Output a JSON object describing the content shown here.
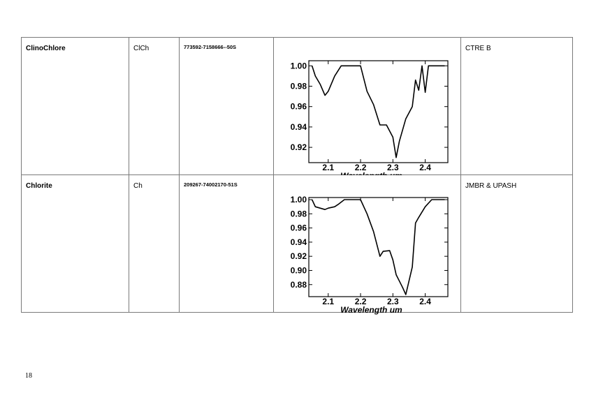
{
  "rows": [
    {
      "name": "ClinoChlore",
      "abbr": "ClCh",
      "code": "773592-7158666--50S",
      "source": "CTRE B"
    },
    {
      "name": "Chlorite",
      "abbr": "Ch",
      "code": "209267-74002170-51S",
      "source": "JMBR & UPASH"
    }
  ],
  "page_number": "18",
  "chart_data": [
    {
      "type": "line",
      "xlabel": "Wavelength um",
      "ylabel": "",
      "xlim": [
        2.04,
        2.47
      ],
      "ylim": [
        0.905,
        1.005
      ],
      "xticks": [
        2.1,
        2.2,
        2.3,
        2.4
      ],
      "xtick_labels": [
        "2.1",
        "2.2",
        "2.3",
        "2.4"
      ],
      "yticks": [
        0.92,
        0.94,
        0.96,
        0.98,
        1.0
      ],
      "ytick_labels": [
        "0.92",
        "0.94",
        "0.96",
        "0.98",
        "1.00"
      ],
      "series": [
        {
          "x": [
            2.05,
            2.06,
            2.075,
            2.09,
            2.1,
            2.12,
            2.14,
            2.16,
            2.18,
            2.2,
            2.22,
            2.24,
            2.26,
            2.28,
            2.3,
            2.31,
            2.32,
            2.34,
            2.36,
            2.37,
            2.38,
            2.39,
            2.4,
            2.41,
            2.42,
            2.44,
            2.46
          ],
          "y": [
            1.0,
            0.99,
            0.982,
            0.971,
            0.975,
            0.99,
            1.0,
            1.0,
            1.0,
            1.0,
            0.975,
            0.962,
            0.942,
            0.942,
            0.93,
            0.91,
            0.926,
            0.948,
            0.96,
            0.986,
            0.976,
            1.0,
            0.974,
            1.0,
            1.0,
            1.0,
            1.0
          ]
        }
      ]
    },
    {
      "type": "line",
      "xlabel": "Wavelength um",
      "ylabel": "",
      "xlim": [
        2.04,
        2.47
      ],
      "ylim": [
        0.863,
        1.003
      ],
      "xticks": [
        2.1,
        2.2,
        2.3,
        2.4
      ],
      "xtick_labels": [
        "2.1",
        "2.2",
        "2.3",
        "2.4"
      ],
      "yticks": [
        0.88,
        0.9,
        0.92,
        0.94,
        0.96,
        0.98,
        1.0
      ],
      "ytick_labels": [
        "0.88",
        "0.90",
        "0.92",
        "0.94",
        "0.96",
        "0.98",
        "1.00"
      ],
      "series": [
        {
          "x": [
            2.05,
            2.06,
            2.075,
            2.09,
            2.1,
            2.12,
            2.13,
            2.15,
            2.17,
            2.19,
            2.2,
            2.22,
            2.24,
            2.26,
            2.27,
            2.29,
            2.3,
            2.31,
            2.32,
            2.33,
            2.34,
            2.36,
            2.37,
            2.38,
            2.4,
            2.42,
            2.44,
            2.46
          ],
          "y": [
            1.0,
            0.99,
            0.988,
            0.986,
            0.988,
            0.99,
            0.993,
            1.0,
            1.0,
            1.0,
            1.0,
            0.98,
            0.955,
            0.92,
            0.927,
            0.928,
            0.915,
            0.894,
            0.885,
            0.876,
            0.866,
            0.905,
            0.967,
            0.975,
            0.99,
            1.0,
            1.0,
            1.0
          ]
        }
      ]
    }
  ]
}
